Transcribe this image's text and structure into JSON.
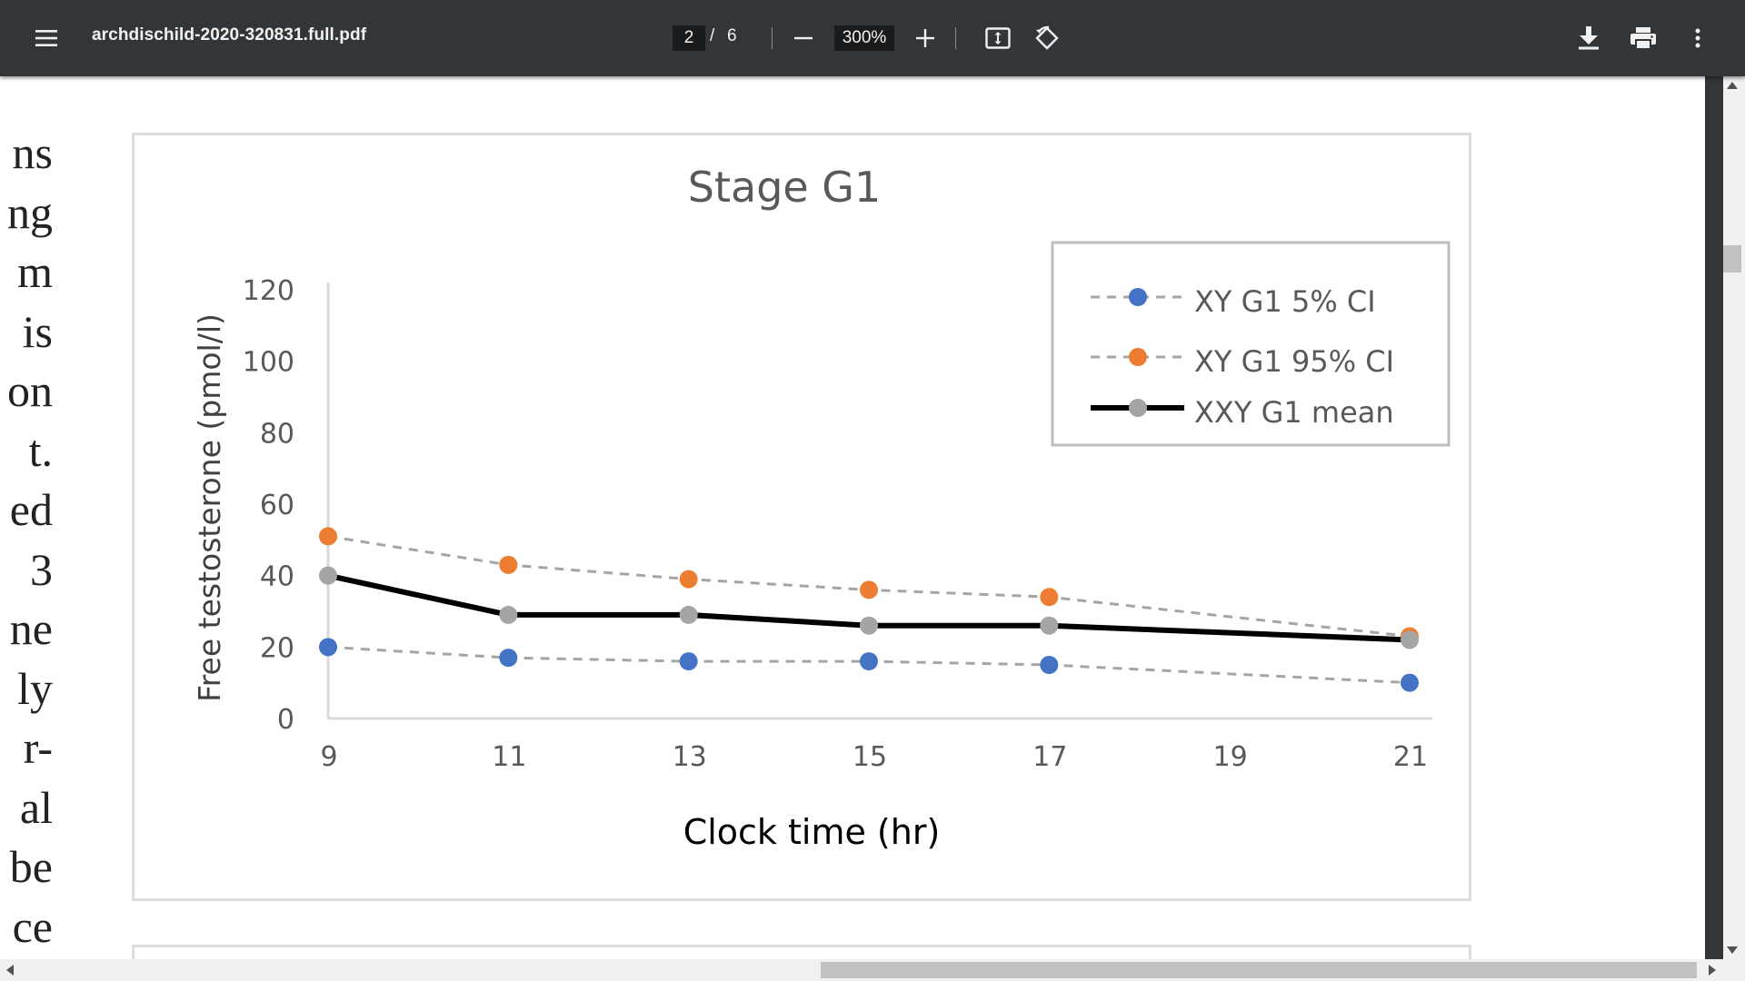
{
  "toolbar": {
    "filename": "archdischild-2020-320831.full.pdf",
    "current_page": "2",
    "page_separator": "/",
    "total_pages": "6",
    "zoom": "300%",
    "icons": [
      "menu-icon",
      "zoom-out-icon",
      "zoom-in-icon",
      "fit-page-icon",
      "rotate-icon",
      "download-icon",
      "print-icon",
      "more-options-icon"
    ]
  },
  "margin_text": [
    "ns",
    "ng",
    "m",
    "is",
    "on",
    "t.",
    "ed",
    "3",
    "ne",
    "ly",
    "r-",
    "al",
    "be",
    "ce"
  ],
  "colors": {
    "toolbar_bg": "#323639",
    "series_5ci": "#4472c4",
    "series_95ci": "#ed7d31",
    "series_mean_marker": "#a5a5a5",
    "series_mean_line": "#000000",
    "dashed_line": "#a5a5a5"
  },
  "chart_data": {
    "type": "line",
    "title": "Stage G1",
    "xlabel": "Clock time (hr)",
    "ylabel": "Free testosterone (pmol/l)",
    "xlim": [
      9,
      21
    ],
    "ylim": [
      0,
      120
    ],
    "xticks": [
      9,
      11,
      13,
      15,
      17,
      19,
      21
    ],
    "yticks": [
      0,
      20,
      40,
      60,
      80,
      100,
      120
    ],
    "legend_position": "top-right",
    "series": [
      {
        "name": "XY G1 5% CI",
        "style": "dashed",
        "x": [
          9,
          11,
          13,
          15,
          17,
          21
        ],
        "y": [
          20,
          17,
          16,
          16,
          15,
          10
        ]
      },
      {
        "name": "XY G1 95% CI",
        "style": "dashed",
        "x": [
          9,
          11,
          13,
          15,
          17,
          21
        ],
        "y": [
          51,
          43,
          39,
          36,
          34,
          23
        ]
      },
      {
        "name": "XXY G1 mean",
        "style": "solid",
        "x": [
          9,
          11,
          13,
          15,
          17,
          21
        ],
        "y": [
          40,
          29,
          29,
          26,
          26,
          22
        ]
      }
    ]
  }
}
